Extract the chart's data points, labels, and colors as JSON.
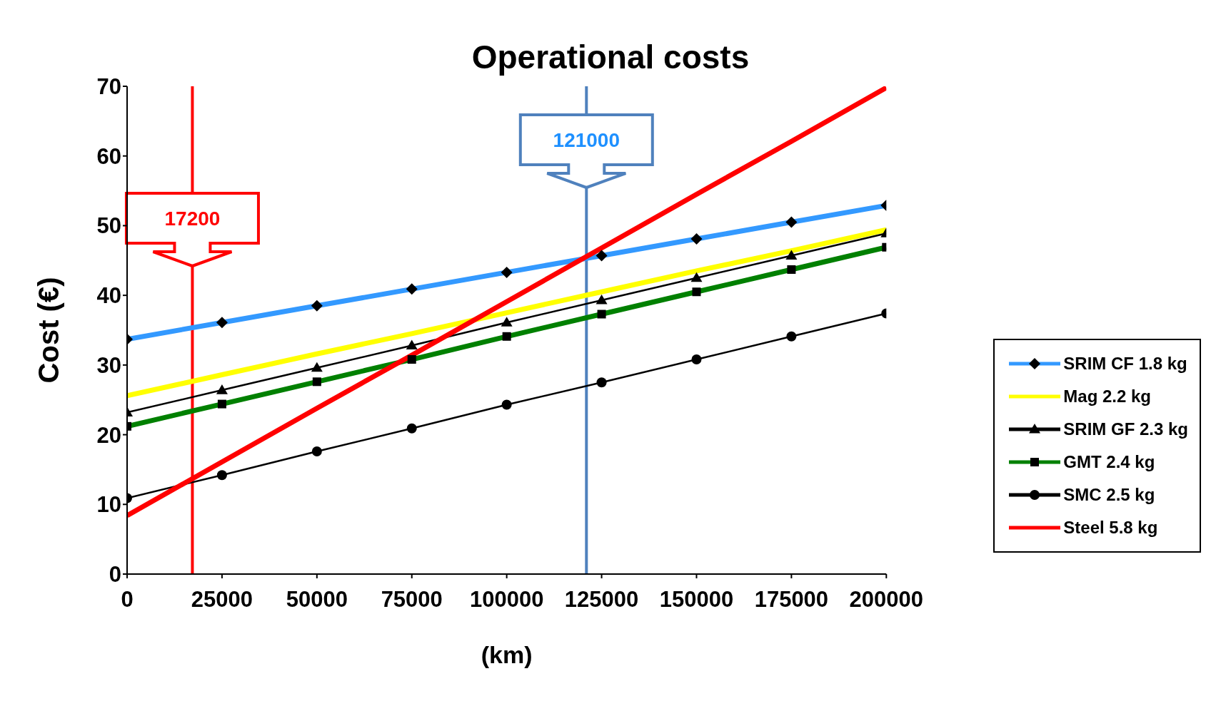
{
  "chart_data": {
    "type": "line",
    "title": "Operational costs",
    "xlabel": "(km)",
    "ylabel": "Cost (€)",
    "x": [
      0,
      25000,
      50000,
      75000,
      100000,
      125000,
      150000,
      175000,
      200000
    ],
    "series": [
      {
        "name": "SRIM CF 1.8 kg",
        "color": "#3399ff",
        "marker": "diamond",
        "values": [
          33.7,
          36.1,
          38.5,
          40.9,
          43.3,
          45.7,
          48.1,
          50.5,
          52.9
        ]
      },
      {
        "name": "Mag 2.2 kg",
        "color": "#ffff00",
        "marker": "none",
        "values": [
          25.6,
          28.6,
          31.6,
          34.5,
          37.5,
          40.5,
          43.5,
          46.4,
          49.4
        ]
      },
      {
        "name": "SRIM GF 2.3 kg",
        "color": "#000000",
        "marker": "triangle",
        "values": [
          23.2,
          26.4,
          29.6,
          32.8,
          36.1,
          39.3,
          42.5,
          45.7,
          48.9
        ]
      },
      {
        "name": "GMT 2.4 kg",
        "color": "#008000",
        "marker": "square",
        "values": [
          21.2,
          24.4,
          27.6,
          30.8,
          34.1,
          37.3,
          40.5,
          43.7,
          46.9
        ]
      },
      {
        "name": "SMC 2.5 kg",
        "color": "#000000",
        "marker": "circle",
        "values": [
          10.9,
          14.2,
          17.6,
          20.9,
          24.3,
          27.5,
          30.8,
          34.1,
          37.4
        ]
      },
      {
        "name": "Steel 5.8 kg",
        "color": "#ff0000",
        "marker": "none",
        "values": [
          8.4,
          16.1,
          23.8,
          31.4,
          39.1,
          46.8,
          54.5,
          62.1,
          69.8
        ]
      }
    ],
    "xlim": [
      0,
      200000
    ],
    "xticks": [
      0,
      25000,
      50000,
      75000,
      100000,
      125000,
      150000,
      175000,
      200000
    ],
    "ylim": [
      0,
      70
    ],
    "yticks": [
      0,
      10,
      20,
      30,
      40,
      50,
      60,
      70
    ],
    "grid": false,
    "legend": "bottom right",
    "ref_lines": [
      {
        "axis": "x",
        "value": 17200,
        "label": "17200",
        "color": "#ff0000"
      },
      {
        "axis": "x",
        "value": 121000,
        "label": "121000",
        "color": "#4f81bd"
      }
    ]
  }
}
